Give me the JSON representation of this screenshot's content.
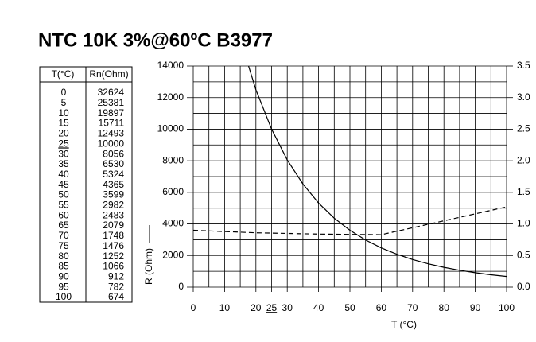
{
  "title": "NTC 10K 3%@60ºC B3977",
  "table": {
    "headers": [
      "T(°C)",
      "Rn(Ohm)"
    ],
    "T": [
      0,
      5,
      10,
      15,
      20,
      25,
      30,
      35,
      40,
      45,
      50,
      55,
      60,
      65,
      70,
      75,
      80,
      85,
      90,
      95,
      100
    ],
    "Rn": [
      32624,
      25381,
      19897,
      15711,
      12493,
      10000,
      8056,
      6530,
      5324,
      4365,
      3599,
      2982,
      2483,
      2079,
      1748,
      1476,
      1252,
      1066,
      912,
      782,
      674
    ]
  },
  "chart_data": {
    "type": "line",
    "x_label": "T (°C)",
    "y_label": "R (Ohm)",
    "xlim": [
      0,
      100
    ],
    "xticks": [
      0,
      10,
      20,
      25,
      30,
      40,
      50,
      60,
      70,
      80,
      90,
      100
    ],
    "xminorticks": [
      5,
      15,
      35,
      45,
      55,
      65,
      75,
      85,
      95
    ],
    "emphasized_x": 25,
    "ylim": [
      0,
      14000
    ],
    "yticks": [
      0,
      2000,
      4000,
      6000,
      8000,
      10000,
      12000,
      14000
    ],
    "yminorticks": [
      1000,
      3000,
      5000,
      7000,
      9000,
      11000,
      13000
    ],
    "y2lim": [
      0,
      3.5
    ],
    "y2ticks": [
      {
        "value": 0,
        "label": "0.0"
      },
      {
        "value": 0.5,
        "label": "0.5"
      },
      {
        "value": 1,
        "label": "1.0"
      },
      {
        "value": 1.5,
        "label": "1.5"
      },
      {
        "value": 2,
        "label": "2.0"
      },
      {
        "value": 2.5,
        "label": "2.5"
      },
      {
        "value": 3,
        "label": "3.0"
      },
      {
        "value": 3.5,
        "label": "3.5"
      }
    ],
    "grid": true,
    "series": [
      {
        "color": "#000000",
        "dashed": false,
        "x_from": "table.T",
        "values_from": "table.Rn"
      },
      {
        "color": "#000000",
        "dashed": true,
        "axis": "y2",
        "x": [
          0,
          20,
          40,
          60,
          80,
          100
        ],
        "values": [
          0.9,
          0.86,
          0.84,
          0.83,
          1.05,
          1.27
        ]
      }
    ]
  }
}
